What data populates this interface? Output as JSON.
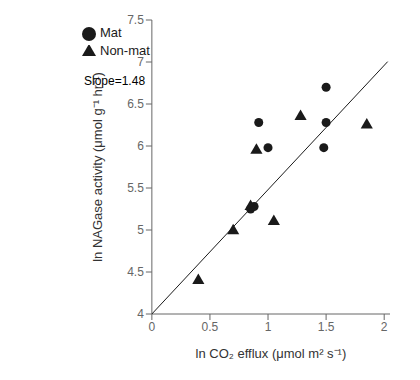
{
  "chart_data": {
    "type": "scatter",
    "xlabel": "ln CO₂ efflux (μmol m² s⁻¹)",
    "ylabel": "ln NAGase activity (μmol g⁻¹ hr⁻¹)",
    "xlim": [
      0,
      2.05
    ],
    "ylim": [
      4,
      7.5
    ],
    "xticks": [
      0,
      0.5,
      1,
      1.5,
      2
    ],
    "yticks": [
      4,
      4.5,
      5,
      5.5,
      6,
      6.5,
      7,
      7.5
    ],
    "grid": false,
    "legend": "upper left",
    "annotation": "Slope=1.48",
    "series": [
      {
        "name": "Mat",
        "color": "#1a1a1a",
        "marker": "circle",
        "x": [
          0.85,
          0.88,
          1.0,
          0.92,
          1.5,
          1.5,
          1.48
        ],
        "values": [
          5.25,
          5.28,
          5.98,
          6.28,
          6.28,
          6.7,
          5.98
        ]
      },
      {
        "name": "Non-mat",
        "color": "#1a1a1a",
        "marker": "triangle",
        "x": [
          0.4,
          0.7,
          0.85,
          0.9,
          1.05,
          1.28,
          1.85
        ],
        "values": [
          4.4,
          4.99,
          5.28,
          5.95,
          5.1,
          6.35,
          6.25
        ]
      },
      {
        "type": "line",
        "color": "#1a1a1a",
        "x": [
          0.0,
          2.03
        ],
        "values": [
          4.0,
          7.0044
        ]
      }
    ]
  }
}
